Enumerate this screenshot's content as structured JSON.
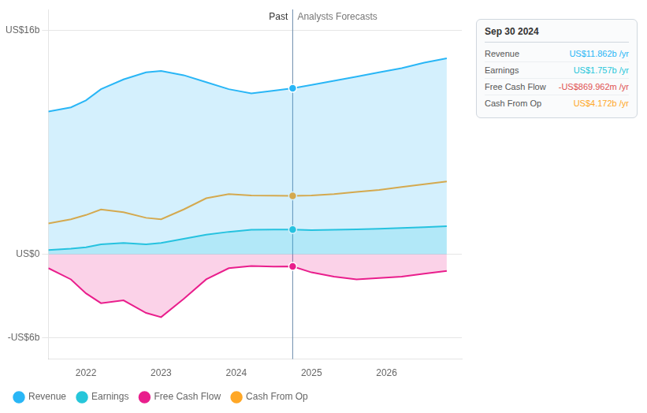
{
  "chart_data": {
    "type": "area",
    "x": [
      2021.5,
      2021.8,
      2022.0,
      2022.2,
      2022.5,
      2022.8,
      2023.0,
      2023.3,
      2023.6,
      2023.9,
      2024.2,
      2024.5,
      2024.75,
      2025.0,
      2025.3,
      2025.6,
      2025.9,
      2026.2,
      2026.5,
      2026.8
    ],
    "xlim": [
      2021.5,
      2027.0
    ],
    "xticks": [
      2022,
      2023,
      2024,
      2025,
      2026
    ],
    "ylim": [
      -7.5,
      17.5
    ],
    "yticks": [
      {
        "value": -6,
        "label": "-US$6b"
      },
      {
        "value": 0,
        "label": "US$0"
      },
      {
        "value": 16,
        "label": "US$16b"
      }
    ],
    "grid": true,
    "legend": "bottom",
    "series": [
      {
        "name": "Revenue",
        "color": "#29b6f6",
        "type": "area",
        "values": [
          10.2,
          10.5,
          11.0,
          11.8,
          12.5,
          13.0,
          13.1,
          12.8,
          12.3,
          11.8,
          11.5,
          11.7,
          11.862,
          12.1,
          12.4,
          12.7,
          13.0,
          13.3,
          13.7,
          14.0
        ]
      },
      {
        "name": "Earnings",
        "color": "#26c6da",
        "type": "area",
        "values": [
          0.3,
          0.4,
          0.5,
          0.7,
          0.8,
          0.7,
          0.8,
          1.1,
          1.4,
          1.6,
          1.75,
          1.76,
          1.757,
          1.72,
          1.75,
          1.78,
          1.82,
          1.87,
          1.93,
          2.0
        ]
      },
      {
        "name": "Free Cash Flow",
        "color": "#e91e8c",
        "type": "area",
        "values": [
          -1.0,
          -1.8,
          -2.8,
          -3.5,
          -3.3,
          -4.2,
          -4.5,
          -3.2,
          -1.8,
          -1.0,
          -0.85,
          -0.88,
          -0.87,
          -1.3,
          -1.6,
          -1.8,
          -1.7,
          -1.6,
          -1.4,
          -1.2
        ]
      },
      {
        "name": "Cash From Op",
        "color": "#ffa726",
        "type": "line",
        "values": [
          2.2,
          2.5,
          2.8,
          3.2,
          3.0,
          2.6,
          2.5,
          3.2,
          4.0,
          4.3,
          4.2,
          4.18,
          4.172,
          4.2,
          4.3,
          4.45,
          4.6,
          4.8,
          5.0,
          5.2
        ]
      }
    ],
    "divider": {
      "x": 2024.75,
      "before": "Past",
      "after": "Analysts Forecasts"
    },
    "tooltip": {
      "title": "Sep 30 2024",
      "rows": [
        {
          "label": "Revenue",
          "value": "US$11.862b /yr",
          "color": "#29b6f6"
        },
        {
          "label": "Earnings",
          "value": "US$1.757b /yr",
          "color": "#26c6da"
        },
        {
          "label": "Free Cash Flow",
          "value": "-US$869.962m /yr",
          "color": "#e05050"
        },
        {
          "label": "Cash From Op",
          "value": "US$4.172b /yr",
          "color": "#ffa726"
        }
      ]
    }
  }
}
